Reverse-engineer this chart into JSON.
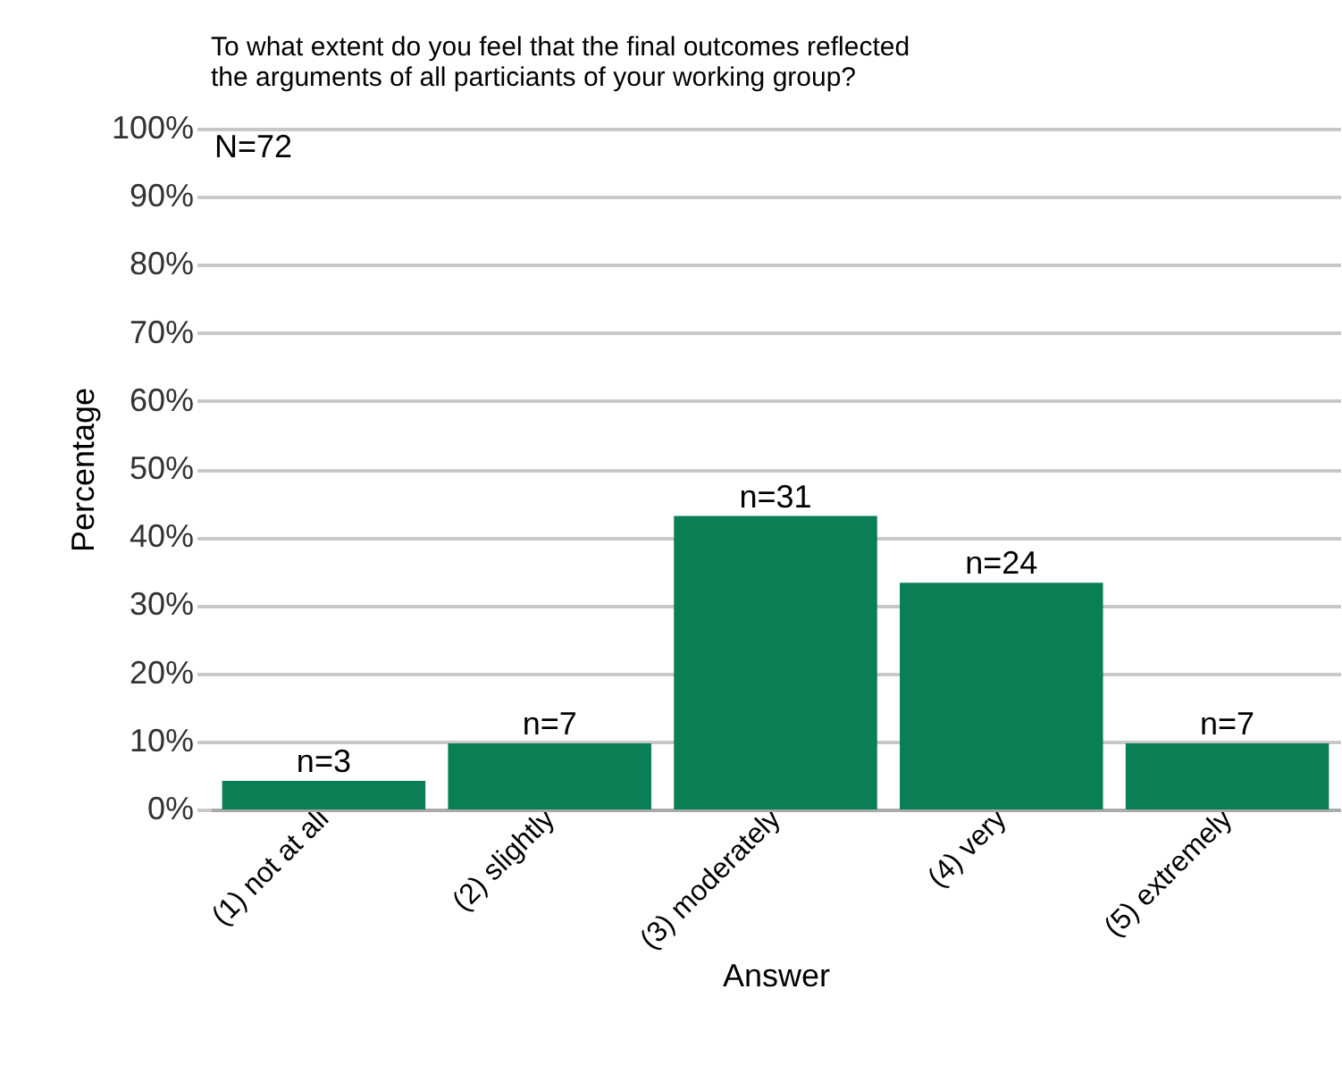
{
  "chart_data": {
    "type": "bar",
    "title": "To what extent do you feel that the final outcomes reflected the arguments of all particiants of your working group?",
    "xlabel": "Answer",
    "ylabel": "Percentage",
    "categories": [
      "(1) not at all",
      "(2) slightly",
      "(3) moderately",
      "(4) very",
      "(5) extremely"
    ],
    "values": [
      4.2,
      9.7,
      43.1,
      33.3,
      9.7
    ],
    "color": "#0a7f55",
    "ylim": [
      0,
      100
    ],
    "yticks": [
      {
        "value": 0,
        "label": "0%"
      },
      {
        "value": 10,
        "label": "10%"
      },
      {
        "value": 20,
        "label": "20%"
      },
      {
        "value": 30,
        "label": "30%"
      },
      {
        "value": 40,
        "label": "40%"
      },
      {
        "value": 50,
        "label": "50%"
      },
      {
        "value": 60,
        "label": "60%"
      },
      {
        "value": 70,
        "label": "70%"
      },
      {
        "value": 80,
        "label": "80%"
      },
      {
        "value": 90,
        "label": "90%"
      },
      {
        "value": 100,
        "label": "100%"
      }
    ],
    "annotations": [
      "N=72",
      {
        "text": "n=3",
        "x": "(1) not at all",
        "y": 4.2
      },
      {
        "text": "n=7",
        "x": "(2) slightly",
        "y": 9.7
      },
      {
        "text": "n=31",
        "x": "(3) moderately",
        "y": 43.1
      },
      {
        "text": "n=24",
        "x": "(4) very",
        "y": 33.3
      },
      {
        "text": "n=7",
        "x": "(5) extremely",
        "y": 9.7
      }
    ],
    "grid": "y"
  }
}
